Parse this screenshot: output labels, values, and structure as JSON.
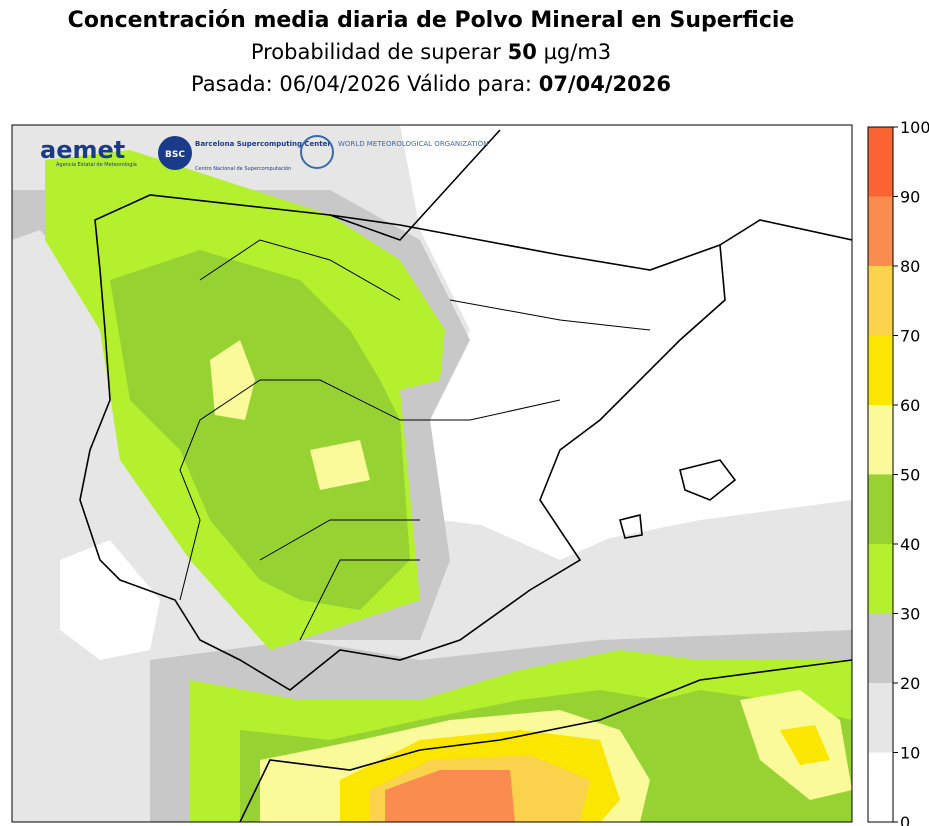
{
  "title": "Concentración media diaria de Polvo Mineral en Superficie",
  "subtitle": {
    "prefix": "Probabilidad de superar",
    "threshold": "50",
    "unit": "µg/m3"
  },
  "run": {
    "text": "Pasada: 06/04/2026 Válido para:",
    "valid_date": "07/04/2026"
  },
  "logos": {
    "aemet": "aemet",
    "aemet_sub": "Agencia Estatal de Meteorología",
    "bsc": "BSC",
    "bsc_name": "Barcelona Supercomputing Center",
    "bsc_sub": "Centro Nacional de Supercomputación",
    "wmo": "WORLD METEOROLOGICAL ORGANIZATION"
  },
  "colorbar": {
    "bounds": [
      0,
      10,
      20,
      30,
      40,
      50,
      60,
      70,
      80,
      90,
      100
    ],
    "colors": [
      "#ffffff",
      "#e6e6e6",
      "#c8c8c8",
      "#b4f02d",
      "#96d232",
      "#fafa9b",
      "#fae600",
      "#fad24b",
      "#fa8c50",
      "#fa6432"
    ]
  }
}
